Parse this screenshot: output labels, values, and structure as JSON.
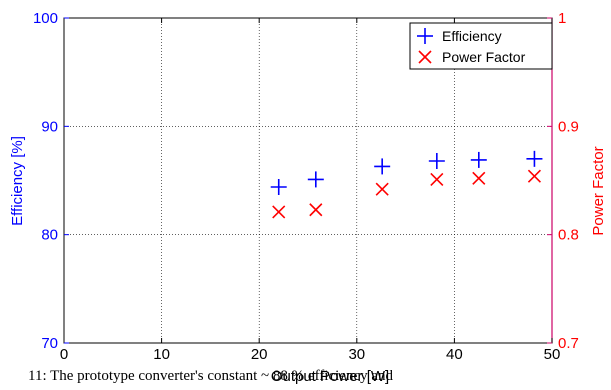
{
  "chart_data": {
    "type": "scatter",
    "title": "",
    "xlabel": "Output Power [W]",
    "ylabel_left": "Efficiency [%]",
    "ylabel_right": "Power Factor",
    "xlim": [
      0,
      50
    ],
    "ylim_left": [
      70,
      100
    ],
    "ylim_right": [
      0.7,
      1.0
    ],
    "xticks": [
      0,
      10,
      20,
      30,
      40,
      50
    ],
    "yticks_left": [
      70,
      80,
      90,
      100
    ],
    "yticks_right": [
      0.7,
      0.8,
      0.9,
      1.0
    ],
    "xtick_labels": [
      "0",
      "10",
      "20",
      "30",
      "40",
      "50"
    ],
    "ytick_labels_left": [
      "70",
      "80",
      "90",
      "100"
    ],
    "ytick_labels_right": [
      "0.7",
      "0.8",
      "0.9",
      "1"
    ],
    "grid": true,
    "legend_position": "top-right",
    "series": [
      {
        "name": "Efficiency",
        "axis": "left",
        "marker": "plus",
        "color": "#0000ff",
        "x": [
          22.0,
          25.8,
          32.6,
          38.2,
          42.5,
          48.2
        ],
        "y": [
          84.4,
          85.1,
          86.3,
          86.8,
          86.9,
          87.0
        ]
      },
      {
        "name": "Power Factor",
        "axis": "right",
        "marker": "x",
        "color": "#ff0000",
        "x": [
          22.0,
          25.8,
          32.6,
          38.2,
          42.5,
          48.2
        ],
        "y": [
          0.821,
          0.823,
          0.842,
          0.851,
          0.852,
          0.854
        ]
      }
    ]
  },
  "colors": {
    "left_axis": "#0000ff",
    "right_axis": "#cc0066",
    "grid": "#000000"
  },
  "caption": {
    "text": "11: The prototype converter's constant ~ 88 % efficiency and"
  }
}
